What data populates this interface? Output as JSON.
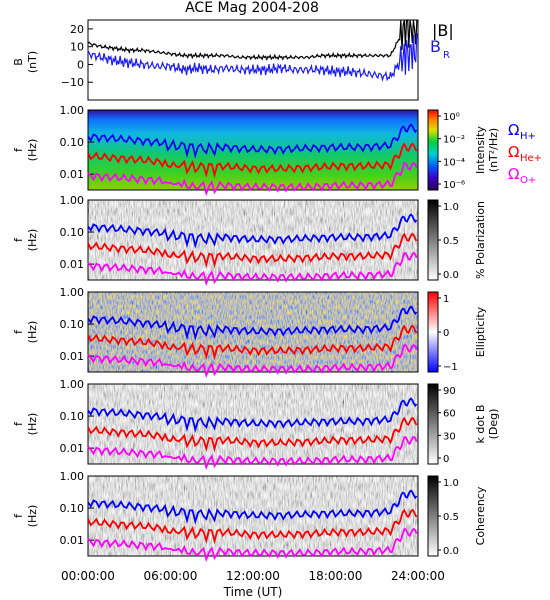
{
  "title": "ACE Mag 2004-208",
  "xaxis": {
    "label": "Time (UT)",
    "ticks": [
      "00:00:00",
      "06:00:00",
      "12:00:00",
      "18:00:00",
      "24:00:00"
    ],
    "range_hours": [
      0,
      24
    ]
  },
  "freq_ticks": [
    "1.00",
    "0.10",
    "0.01"
  ],
  "colors": {
    "B_total": "#000000",
    "B_R": "#1a1aff",
    "H_plus": "#0000ff",
    "He_plus": "#ff0000",
    "O_plus": "#ff00ff"
  },
  "legend": {
    "Btot": "|B|",
    "BR_main": "B",
    "BR_sub": "R",
    "omega": "Ω",
    "H_sub": "H+",
    "He_sub": "He+",
    "O_sub": "O+"
  },
  "panels": [
    {
      "name": "B-field",
      "ylabel": "B",
      "yunit": "(nT)",
      "yticks": [
        "20",
        "10",
        "0",
        "−10"
      ]
    },
    {
      "name": "intensity",
      "ylabel": "f",
      "yunit": "(Hz)",
      "colorbar_label_line1": "Intensity",
      "colorbar_label_line2": "(nT²/Hz)",
      "colorbar_ticks": [
        "10⁰",
        "10⁻²",
        "10⁻⁴",
        "10⁻⁶"
      ],
      "colormap": "rainbow"
    },
    {
      "name": "polarization",
      "ylabel": "f",
      "yunit": "(Hz)",
      "colorbar_label": "% Polarization",
      "colorbar_ticks": [
        "1.0",
        "0.5",
        "0.0"
      ],
      "colormap": "grayscale-inverted"
    },
    {
      "name": "ellipticity",
      "ylabel": "f",
      "yunit": "(Hz)",
      "colorbar_label": "Ellipticity",
      "colorbar_ticks": [
        "1",
        "0",
        "−1"
      ],
      "colormap": "blue-white-red"
    },
    {
      "name": "k-dot-B",
      "ylabel": "f",
      "yunit": "(Hz)",
      "colorbar_label_line1": "k dot B",
      "colorbar_label_line2": "(Deg)",
      "colorbar_ticks": [
        "90",
        "60",
        "30",
        "0"
      ],
      "colormap": "grayscale-inverted"
    },
    {
      "name": "coherency",
      "ylabel": "f",
      "yunit": "(Hz)",
      "colorbar_label": "Coherency",
      "colorbar_ticks": [
        "1.0",
        "0.5",
        "0.0"
      ],
      "colormap": "grayscale-inverted"
    }
  ],
  "chart_data": {
    "type": "line",
    "title": "ACE Mag 2004-208",
    "xlabel": "Time (UT)",
    "x_hours": [
      0,
      1,
      2,
      3,
      4,
      5,
      6,
      7,
      8,
      9,
      10,
      11,
      12,
      13,
      14,
      15,
      16,
      17,
      18,
      19,
      20,
      21,
      22,
      23,
      24
    ],
    "ylim_B": [
      -20,
      25
    ],
    "series": [
      {
        "name": "|B|",
        "values": [
          12,
          10,
          9,
          8,
          8,
          7,
          6,
          5,
          5,
          5,
          5,
          4,
          4,
          4,
          4,
          4,
          4,
          5,
          5,
          5,
          5,
          5,
          5,
          20,
          20
        ]
      },
      {
        "name": "B_R",
        "values": [
          6,
          4,
          2,
          1,
          0,
          -1,
          -1,
          -3,
          -2,
          -3,
          -2,
          -3,
          -3,
          -3,
          -2,
          -3,
          -3,
          -3,
          -4,
          -4,
          -5,
          -6,
          -7,
          5,
          8
        ]
      }
    ],
    "gyrofrequencies_hz": {
      "x_hours": [
        0,
        2,
        4,
        6,
        8,
        10,
        12,
        14,
        16,
        18,
        20,
        22,
        23,
        24
      ],
      "H+": [
        0.15,
        0.13,
        0.11,
        0.09,
        0.07,
        0.07,
        0.06,
        0.06,
        0.065,
        0.07,
        0.07,
        0.08,
        0.28,
        0.28
      ],
      "He+": [
        0.038,
        0.032,
        0.028,
        0.022,
        0.018,
        0.018,
        0.015,
        0.015,
        0.016,
        0.018,
        0.018,
        0.02,
        0.07,
        0.07
      ],
      "O+": [
        0.009,
        0.008,
        0.007,
        0.006,
        0.0045,
        0.0045,
        0.004,
        0.004,
        0.004,
        0.0045,
        0.0045,
        0.005,
        0.018,
        0.018
      ]
    }
  }
}
